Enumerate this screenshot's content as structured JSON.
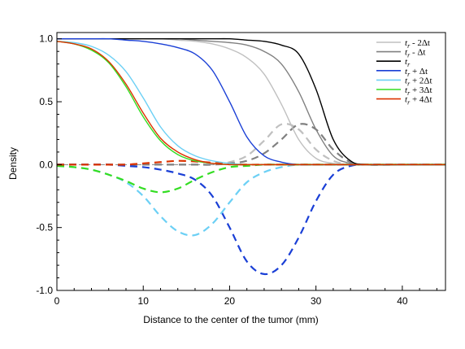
{
  "chart_data": {
    "type": "line",
    "title": "",
    "xlabel": "Distance to the center of the tumor (mm)",
    "ylabel": "Density",
    "xlim": [
      0,
      45
    ],
    "ylim": [
      -1.0,
      1.05
    ],
    "x_ticks": [
      0,
      10,
      20,
      30,
      40
    ],
    "y_ticks": [
      -1.0,
      -0.5,
      0.0,
      0.5,
      1.0
    ],
    "y_tick_labels": [
      "-1.0",
      "-0.5",
      "0.0",
      "0.5",
      "1.0"
    ],
    "grid": false,
    "legend_position": "top-right",
    "x": [
      0,
      2,
      4,
      6,
      8,
      10,
      12,
      14,
      16,
      18,
      20,
      22,
      24,
      26,
      28,
      30,
      32,
      34,
      36,
      40,
      45
    ],
    "series": [
      {
        "name": "t_r - 2Δt",
        "legend": {
          "base": "t",
          "sub": "r",
          "suffix": " - 2Δt"
        },
        "color": "#c0c0c0",
        "density": [
          1.0,
          1.0,
          1.0,
          1.0,
          1.0,
          1.0,
          1.0,
          0.99,
          0.98,
          0.96,
          0.92,
          0.85,
          0.72,
          0.48,
          0.2,
          0.05,
          0.01,
          0.0,
          0.0,
          0.0,
          0.0
        ],
        "difference": [
          0.0,
          0.0,
          0.0,
          0.0,
          0.0,
          0.0,
          0.0,
          0.0,
          0.0,
          0.0,
          0.02,
          0.07,
          0.19,
          0.32,
          0.28,
          0.12,
          0.03,
          0.0,
          0.0,
          0.0,
          0.0
        ]
      },
      {
        "name": "t_r - Δt",
        "legend": {
          "base": "t",
          "sub": "r",
          "suffix": " - Δt"
        },
        "color": "#808080",
        "density": [
          1.0,
          1.0,
          1.0,
          1.0,
          1.0,
          1.0,
          1.0,
          1.0,
          0.99,
          0.98,
          0.97,
          0.95,
          0.9,
          0.8,
          0.58,
          0.28,
          0.07,
          0.01,
          0.0,
          0.0,
          0.0
        ],
        "difference": [
          0.0,
          0.0,
          0.0,
          0.0,
          0.0,
          0.0,
          0.0,
          0.0,
          0.0,
          0.0,
          0.01,
          0.03,
          0.09,
          0.2,
          0.32,
          0.28,
          0.12,
          0.02,
          0.0,
          0.0,
          0.0
        ]
      },
      {
        "name": "t_r",
        "legend": {
          "base": "t",
          "sub": "r",
          "suffix": ""
        },
        "color": "#000000",
        "density": [
          1.0,
          1.0,
          1.0,
          1.0,
          1.0,
          1.0,
          1.0,
          1.0,
          1.0,
          1.0,
          1.0,
          0.99,
          0.98,
          0.95,
          0.88,
          0.6,
          0.2,
          0.03,
          0.0,
          0.0,
          0.0
        ],
        "difference": []
      },
      {
        "name": "t_r + Δt",
        "legend": {
          "base": "t",
          "sub": "r",
          "suffix": " + Δt"
        },
        "color": "#1a3fd6",
        "density": [
          1.0,
          1.0,
          1.0,
          1.0,
          0.99,
          0.98,
          0.96,
          0.93,
          0.88,
          0.75,
          0.5,
          0.22,
          0.07,
          0.02,
          0.0,
          0.0,
          0.0,
          0.0,
          0.0,
          0.0,
          0.0
        ],
        "difference": [
          0.0,
          0.0,
          0.0,
          0.0,
          -0.01,
          -0.02,
          -0.04,
          -0.07,
          -0.12,
          -0.25,
          -0.5,
          -0.77,
          -0.87,
          -0.8,
          -0.58,
          -0.29,
          -0.08,
          -0.01,
          0.0,
          0.0,
          0.0
        ]
      },
      {
        "name": "t_r + 2Δt",
        "legend": {
          "base": "t",
          "sub": "r",
          "suffix": " + 2Δt"
        },
        "color": "#6cd0f5",
        "density": [
          0.98,
          0.97,
          0.94,
          0.87,
          0.74,
          0.53,
          0.3,
          0.15,
          0.07,
          0.03,
          0.01,
          0.0,
          0.0,
          0.0,
          0.0,
          0.0,
          0.0,
          0.0,
          0.0,
          0.0,
          0.0
        ],
        "difference": [
          -0.01,
          -0.02,
          -0.04,
          -0.08,
          -0.14,
          -0.25,
          -0.41,
          -0.53,
          -0.56,
          -0.47,
          -0.3,
          -0.14,
          -0.06,
          -0.02,
          0.0,
          0.0,
          0.0,
          0.0,
          0.0,
          0.0,
          0.0
        ]
      },
      {
        "name": "t_r + 3Δt",
        "legend": {
          "base": "t",
          "sub": "r",
          "suffix": " + 3Δt"
        },
        "color": "#33dd22",
        "density": [
          0.98,
          0.96,
          0.91,
          0.81,
          0.62,
          0.38,
          0.19,
          0.08,
          0.03,
          0.01,
          0.0,
          0.0,
          0.0,
          0.0,
          0.0,
          0.0,
          0.0,
          0.0,
          0.0,
          0.0,
          0.0
        ],
        "difference": [
          -0.01,
          -0.02,
          -0.04,
          -0.08,
          -0.13,
          -0.19,
          -0.22,
          -0.19,
          -0.12,
          -0.06,
          -0.02,
          -0.01,
          0.0,
          0.0,
          0.0,
          0.0,
          0.0,
          0.0,
          0.0,
          0.0,
          0.0
        ]
      },
      {
        "name": "t_r + 4Δt",
        "legend": {
          "base": "t",
          "sub": "r",
          "suffix": " + 4Δt"
        },
        "color": "#dd3300",
        "density": [
          0.98,
          0.96,
          0.92,
          0.82,
          0.64,
          0.41,
          0.21,
          0.1,
          0.04,
          0.01,
          0.0,
          0.0,
          0.0,
          0.0,
          0.0,
          0.0,
          0.0,
          0.0,
          0.0,
          0.0,
          0.0
        ],
        "difference": [
          0.0,
          0.0,
          0.0,
          0.0,
          0.0,
          0.01,
          0.02,
          0.03,
          0.025,
          0.015,
          0.005,
          0.0,
          0.0,
          0.0,
          0.0,
          0.0,
          0.0,
          0.0,
          0.0,
          0.0,
          0.0
        ]
      }
    ],
    "line_styles": {
      "density": "solid",
      "difference": "dashed"
    }
  }
}
